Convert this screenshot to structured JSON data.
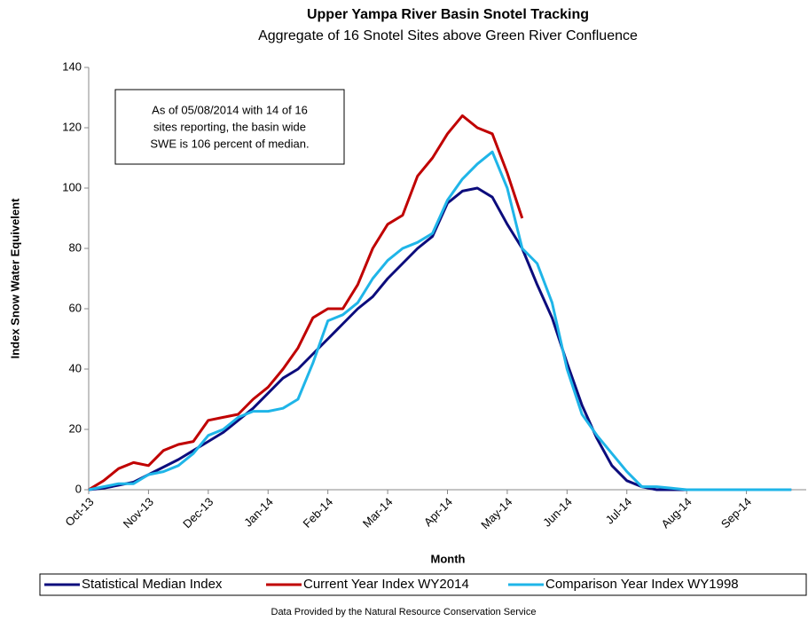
{
  "chart_data": {
    "type": "line",
    "title": "Upper Yampa River Basin Snotel Tracking",
    "subtitle": "Aggregate of 16 Snotel Sites above Green River Confluence",
    "x_label": "Month",
    "y_label": "Index Snow Water Equivelent",
    "annotation": [
      "As of 05/08/2014 with 14 of 16",
      "sites reporting, the basin wide",
      "SWE is 106 percent of median."
    ],
    "footnote": "Data Provided by the Natural Resource Conservation Service",
    "categories": [
      "Oct-13",
      null,
      null,
      null,
      "Nov-13",
      null,
      null,
      null,
      "Dec-13",
      null,
      null,
      null,
      "Jan-14",
      null,
      null,
      null,
      "Feb-14",
      null,
      null,
      null,
      "Mar-14",
      null,
      null,
      null,
      "Apr-14",
      null,
      null,
      null,
      "May-14",
      null,
      null,
      null,
      "Jun-14",
      null,
      null,
      null,
      "Jul-14",
      null,
      null,
      null,
      "Aug-14",
      null,
      null,
      null,
      "Sep-14",
      null,
      null,
      null
    ],
    "series": [
      {
        "name": "Statistical Median Index",
        "color": "#0c0c7c",
        "values": [
          0,
          0.5,
          1.5,
          2.5,
          5,
          7.5,
          10,
          13,
          16,
          19,
          23,
          27,
          32,
          37,
          40,
          45,
          50,
          55,
          60,
          64,
          70,
          75,
          80,
          84,
          95,
          99,
          100,
          97,
          88,
          80,
          68,
          57,
          42,
          28,
          17,
          8,
          3,
          1,
          0,
          0,
          0,
          0,
          0,
          0,
          0,
          0,
          0,
          0
        ]
      },
      {
        "name": "Current Year Index WY2014",
        "color": "#c00000",
        "values": [
          0,
          3,
          7,
          9,
          8,
          13,
          15,
          16,
          23,
          24,
          25,
          30,
          34,
          40,
          47,
          57,
          60,
          60,
          68,
          80,
          88,
          91,
          104,
          110,
          118,
          124,
          120,
          118,
          105,
          90,
          null,
          null,
          null,
          null,
          null,
          null,
          null,
          null,
          null,
          null,
          null,
          null,
          null,
          null,
          null,
          null,
          null,
          null
        ]
      },
      {
        "name": "Comparison Year Index WY1998",
        "color": "#1fb5e8",
        "values": [
          0,
          1,
          2,
          2,
          5,
          6,
          8,
          12,
          18,
          20,
          24,
          26,
          26,
          27,
          30,
          42,
          56,
          58,
          62,
          70,
          76,
          80,
          82,
          85,
          96,
          103,
          108,
          112,
          100,
          80,
          75,
          62,
          40,
          25,
          18,
          12,
          6,
          1,
          1,
          0.5,
          0,
          0,
          0,
          0,
          0,
          0,
          0,
          0
        ]
      }
    ],
    "ylim": [
      0,
      140
    ],
    "yticks": [
      0,
      20,
      40,
      60,
      80,
      100,
      120,
      140
    ],
    "grid": false,
    "legend": "bottom"
  }
}
